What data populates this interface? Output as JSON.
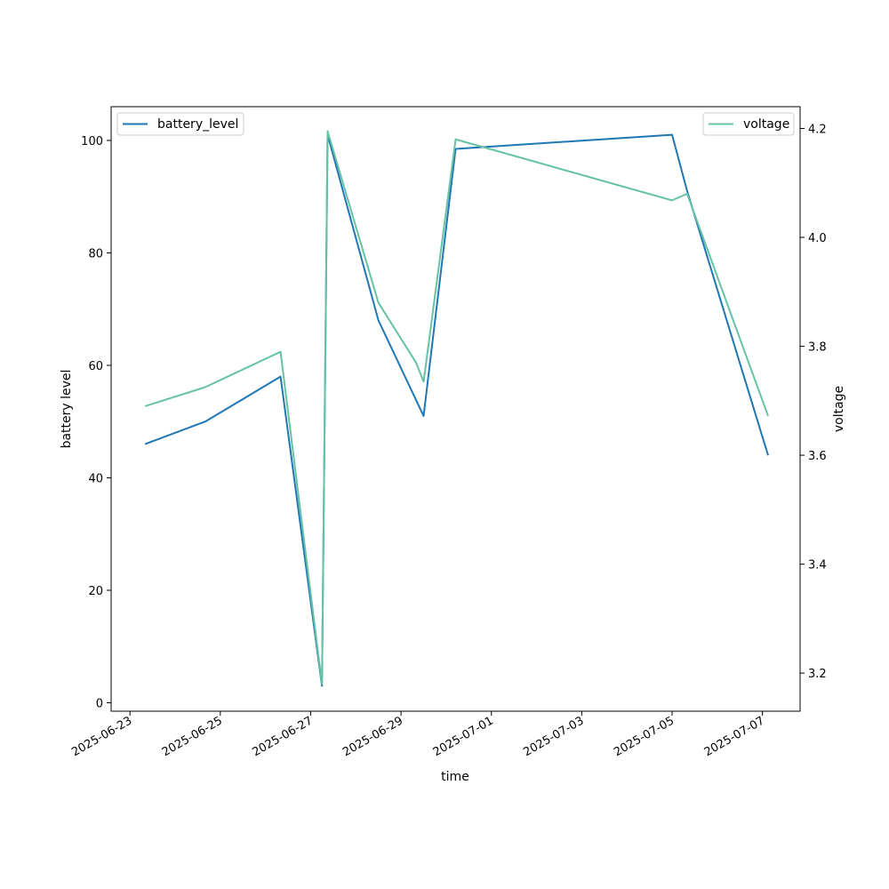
{
  "chart_data": {
    "type": "line",
    "xlabel": "time",
    "ylabel_left": "battery level",
    "ylabel_right": "voltage",
    "x_ticks": [
      "2025-06-23",
      "2025-06-25",
      "2025-06-27",
      "2025-06-29",
      "2025-07-01",
      "2025-07-03",
      "2025-07-05",
      "2025-07-07"
    ],
    "y_left_ticks": [
      0,
      20,
      40,
      60,
      80,
      100
    ],
    "y_right_ticks": [
      3.2,
      3.4,
      3.6,
      3.8,
      4.0,
      4.2
    ],
    "xlim": [
      "2025-06-22T14:00",
      "2025-07-07T20:00"
    ],
    "ylim_left": [
      -1.5,
      106
    ],
    "ylim_right": [
      3.13,
      4.24
    ],
    "colors": {
      "battery_level": "#1f77b4",
      "voltage": "#66c2a5"
    },
    "legend": {
      "left": "battery_level",
      "right": "voltage",
      "left_position": "upper-left",
      "right_position": "upper-right"
    },
    "series": [
      {
        "name": "battery_level",
        "axis": "left",
        "points": [
          [
            "2025-06-23T08:00",
            46
          ],
          [
            "2025-06-24T16:00",
            50
          ],
          [
            "2025-06-26T08:00",
            58
          ],
          [
            "2025-06-27T06:00",
            3
          ],
          [
            "2025-06-27T09:00",
            101
          ],
          [
            "2025-06-28T12:00",
            68
          ],
          [
            "2025-06-29T12:00",
            51
          ],
          [
            "2025-06-30T05:00",
            98.5
          ],
          [
            "2025-07-05T00:00",
            101
          ],
          [
            "2025-07-05T08:00",
            91
          ],
          [
            "2025-07-07T03:00",
            44
          ]
        ]
      },
      {
        "name": "voltage",
        "axis": "right",
        "points": [
          [
            "2025-06-23T08:00",
            3.69
          ],
          [
            "2025-06-24T16:00",
            3.725
          ],
          [
            "2025-06-26T08:00",
            3.79
          ],
          [
            "2025-06-27T06:00",
            3.18
          ],
          [
            "2025-06-27T09:00",
            4.195
          ],
          [
            "2025-06-28T12:00",
            3.88
          ],
          [
            "2025-06-29T08:00",
            3.77
          ],
          [
            "2025-06-29T12:00",
            3.735
          ],
          [
            "2025-06-30T05:00",
            4.18
          ],
          [
            "2025-07-05T00:00",
            4.068
          ],
          [
            "2025-07-05T08:00",
            4.08
          ],
          [
            "2025-07-07T03:00",
            3.672
          ]
        ]
      }
    ]
  }
}
